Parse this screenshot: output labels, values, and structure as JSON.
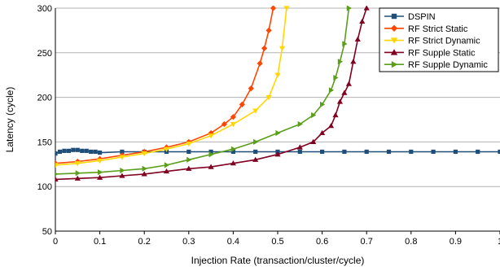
{
  "chart_data": {
    "type": "line",
    "title": "",
    "xlabel": "Injection Rate (transaction/cluster/cycle)",
    "ylabel": "Latency (cycle)",
    "xlim": [
      0,
      1
    ],
    "ylim": [
      50,
      300
    ],
    "xticks": [
      "0",
      "0.1",
      "0.2",
      "0.3",
      "0.4",
      "0.5",
      "0.6",
      "0.7",
      "0.8",
      "0.9",
      "1"
    ],
    "yticks": [
      "50",
      "100",
      "150",
      "200",
      "250",
      "300"
    ],
    "grid": true,
    "legend_position": "top-right",
    "series": [
      {
        "name": "DSPIN",
        "color": "#1f4e79",
        "marker": "square",
        "points": [
          [
            0.0,
            137
          ],
          [
            0.01,
            139
          ],
          [
            0.02,
            140
          ],
          [
            0.03,
            140
          ],
          [
            0.04,
            141
          ],
          [
            0.05,
            141
          ],
          [
            0.06,
            140
          ],
          [
            0.07,
            140
          ],
          [
            0.08,
            139
          ],
          [
            0.09,
            139
          ],
          [
            0.1,
            138
          ],
          [
            0.15,
            139
          ],
          [
            0.2,
            139
          ],
          [
            0.25,
            139
          ],
          [
            0.3,
            139
          ],
          [
            0.35,
            139
          ],
          [
            0.4,
            139
          ],
          [
            0.45,
            139
          ],
          [
            0.5,
            139
          ],
          [
            0.55,
            139
          ],
          [
            0.6,
            139
          ],
          [
            0.65,
            139
          ],
          [
            0.7,
            139
          ],
          [
            0.75,
            139
          ],
          [
            0.8,
            139
          ],
          [
            0.85,
            139
          ],
          [
            0.9,
            139
          ],
          [
            0.95,
            139
          ],
          [
            1.0,
            139
          ]
        ]
      },
      {
        "name": "RF Strict Static",
        "color": "#ff4500",
        "marker": "diamond",
        "points": [
          [
            0.0,
            126
          ],
          [
            0.05,
            128
          ],
          [
            0.1,
            131
          ],
          [
            0.15,
            135
          ],
          [
            0.2,
            139
          ],
          [
            0.25,
            144
          ],
          [
            0.3,
            150
          ],
          [
            0.35,
            160
          ],
          [
            0.38,
            170
          ],
          [
            0.4,
            178
          ],
          [
            0.42,
            192
          ],
          [
            0.44,
            210
          ],
          [
            0.46,
            238
          ],
          [
            0.47,
            255
          ],
          [
            0.48,
            275
          ],
          [
            0.49,
            300
          ]
        ]
      },
      {
        "name": "RF Strict Dynamic",
        "color": "#ffd700",
        "marker": "triangle-down",
        "points": [
          [
            0.0,
            124
          ],
          [
            0.05,
            126
          ],
          [
            0.1,
            129
          ],
          [
            0.15,
            133
          ],
          [
            0.2,
            137
          ],
          [
            0.25,
            142
          ],
          [
            0.3,
            148
          ],
          [
            0.35,
            157
          ],
          [
            0.4,
            170
          ],
          [
            0.45,
            185
          ],
          [
            0.48,
            200
          ],
          [
            0.5,
            225
          ],
          [
            0.51,
            255
          ],
          [
            0.52,
            300
          ]
        ]
      },
      {
        "name": "RF Supple Static",
        "color": "#800020",
        "marker": "triangle-up",
        "points": [
          [
            0.0,
            108
          ],
          [
            0.05,
            109
          ],
          [
            0.1,
            110
          ],
          [
            0.15,
            112
          ],
          [
            0.2,
            114
          ],
          [
            0.25,
            117
          ],
          [
            0.3,
            120
          ],
          [
            0.35,
            122
          ],
          [
            0.4,
            126
          ],
          [
            0.45,
            130
          ],
          [
            0.5,
            136
          ],
          [
            0.55,
            144
          ],
          [
            0.58,
            150
          ],
          [
            0.6,
            160
          ],
          [
            0.62,
            168
          ],
          [
            0.63,
            180
          ],
          [
            0.64,
            195
          ],
          [
            0.65,
            205
          ],
          [
            0.66,
            215
          ],
          [
            0.67,
            240
          ],
          [
            0.68,
            265
          ],
          [
            0.69,
            285
          ],
          [
            0.7,
            300
          ]
        ]
      },
      {
        "name": "RF Supple Dynamic",
        "color": "#5a9e1a",
        "marker": "triangle-right",
        "points": [
          [
            0.0,
            114
          ],
          [
            0.05,
            115
          ],
          [
            0.1,
            116
          ],
          [
            0.15,
            118
          ],
          [
            0.2,
            120
          ],
          [
            0.25,
            124
          ],
          [
            0.3,
            130
          ],
          [
            0.35,
            136
          ],
          [
            0.4,
            142
          ],
          [
            0.45,
            150
          ],
          [
            0.5,
            160
          ],
          [
            0.55,
            170
          ],
          [
            0.58,
            180
          ],
          [
            0.6,
            192
          ],
          [
            0.62,
            208
          ],
          [
            0.63,
            222
          ],
          [
            0.64,
            240
          ],
          [
            0.65,
            260
          ],
          [
            0.66,
            300
          ]
        ]
      }
    ]
  }
}
